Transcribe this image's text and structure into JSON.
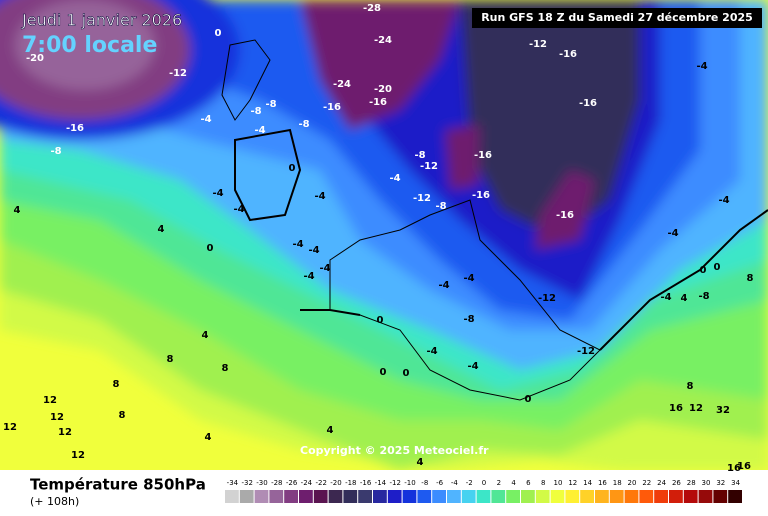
{
  "header": {
    "date": "Jeudi 1 janvier 2026",
    "time": "7:00 locale",
    "run": "Run GFS 18 Z du Samedi 27 décembre 2025"
  },
  "copyright": "Copyright © 2025 Meteociel.fr",
  "footer": {
    "title": "Température 850hPa",
    "subtitle": "(+ 108h)"
  },
  "legend": {
    "ticks": [
      -34,
      -32,
      -30,
      -28,
      -26,
      -24,
      -22,
      -20,
      -18,
      -16,
      -14,
      -12,
      -10,
      -8,
      -6,
      -4,
      -2,
      0,
      2,
      4,
      6,
      8,
      10,
      12,
      14,
      16,
      18,
      20,
      22,
      24,
      26,
      28,
      30,
      32,
      34
    ],
    "colors": [
      "#d2d2d2",
      "#aaaaaa",
      "#b08cb4",
      "#96649a",
      "#823c82",
      "#6e1e6e",
      "#5a1450",
      "#3c2850",
      "#322d5a",
      "#3a3a6e",
      "#2828a0",
      "#1e1ec8",
      "#1432dc",
      "#1e5af0",
      "#3c8cff",
      "#50b4ff",
      "#46d2f0",
      "#3ce6c8",
      "#50e696",
      "#78f064",
      "#a0f050",
      "#d2fa46",
      "#f0ff3c",
      "#fff032",
      "#ffd228",
      "#ffb41e",
      "#ff9614",
      "#ff780a",
      "#ff5a0a",
      "#f03c0a",
      "#d21e0a",
      "#b40a0a",
      "#960a0a",
      "#640000",
      "#320000"
    ]
  },
  "map_labels": [
    0,
    -28,
    -24,
    -12,
    -16,
    -20,
    -12,
    -24,
    -20,
    -16,
    -16,
    -16,
    -16,
    -8,
    -8,
    -8,
    -4,
    -4,
    -8,
    -8,
    -12,
    -16,
    -16,
    -16,
    -4,
    -12,
    -8,
    0,
    -4,
    -4,
    -4,
    4,
    4,
    0,
    -4,
    -4,
    -4,
    -4,
    -4,
    -12,
    -4,
    -4,
    -4,
    0,
    -8,
    -12,
    0,
    -4,
    -8,
    -4,
    0,
    0,
    -4,
    4,
    8,
    8,
    8,
    12,
    12,
    12,
    12,
    8,
    12,
    4,
    0,
    4,
    4,
    8,
    12,
    16,
    32,
    16,
    16,
    8,
    4,
    0,
    -4
  ]
}
